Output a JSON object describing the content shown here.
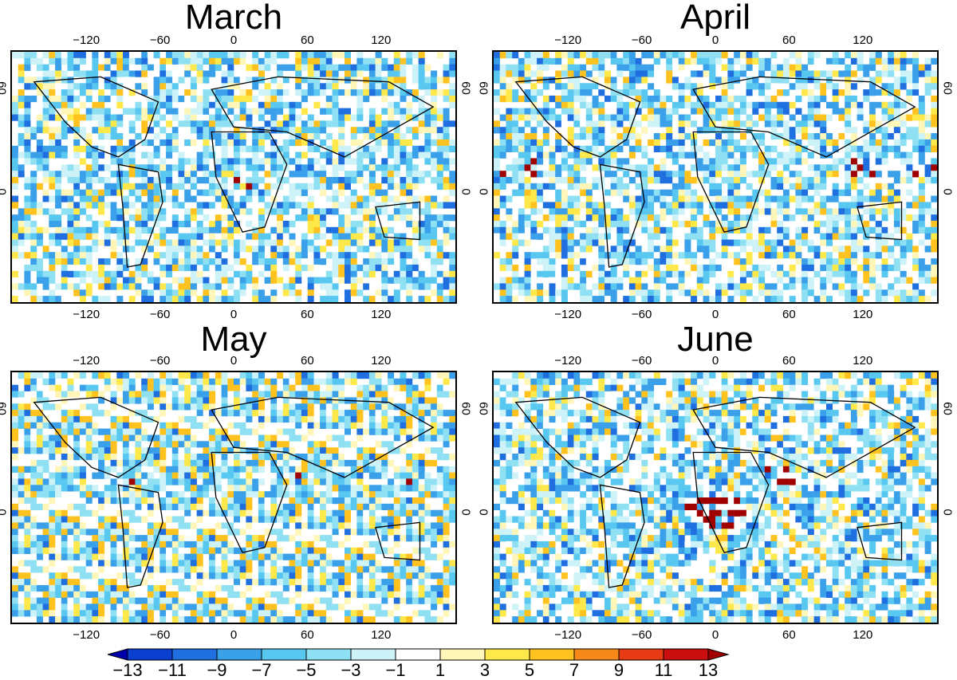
{
  "panels": [
    {
      "id": "march",
      "title": "March"
    },
    {
      "id": "april",
      "title": "April"
    },
    {
      "id": "may",
      "title": "May"
    },
    {
      "id": "june",
      "title": "June"
    }
  ],
  "axes": {
    "lon_ticks": [
      "−120",
      "−60",
      "0",
      "60",
      "120"
    ],
    "lat_ticks": [
      "60",
      "0"
    ]
  },
  "colorbar": {
    "labels": [
      "−13",
      "−11",
      "−9",
      "−7",
      "−5",
      "−3",
      "−1",
      "1",
      "3",
      "5",
      "7",
      "9",
      "11",
      "13"
    ],
    "colors": [
      "#0000aa",
      "#0b3fd0",
      "#1f6fe0",
      "#3aa0ea",
      "#58c8f0",
      "#8fe0f2",
      "#cdf3f8",
      "#ffffff",
      "#fff6b8",
      "#ffe84a",
      "#ffc21e",
      "#f58a1a",
      "#e83a14",
      "#c80e0e",
      "#a00000"
    ]
  }
}
